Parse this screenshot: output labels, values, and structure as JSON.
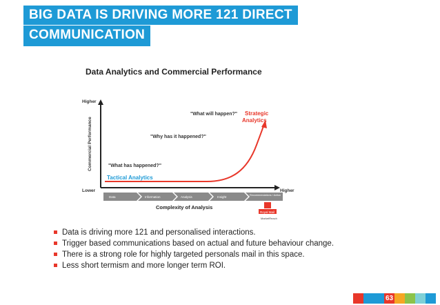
{
  "slide": {
    "title_line1": "BIG DATA IS DRIVING MORE 121 DIRECT",
    "title_line2": "COMMUNICATION",
    "page_number": "63"
  },
  "diagram": {
    "title": "Data Analytics and Commercial Performance",
    "y_axis_label": "Commercial Performance",
    "y_top": "Higher",
    "x_left": "Lower",
    "x_right": "Higher",
    "x_axis_label": "Complexity of Analysis",
    "q1": "\"What has happened?\"",
    "q2": "\"Why has it happened?\"",
    "q3": "\"What will happen?\"",
    "tactical": "Tactical Analytics",
    "strategic_line1": "Strategic",
    "strategic_line2": "Analytics",
    "steps": [
      "Data",
      "Information",
      "Analysis",
      "Insight",
      "Recommendations / Action"
    ],
    "logo_text": "Royal Mail",
    "logo_sub": "MarketReach"
  },
  "bullets": [
    "Data is driving more 121 and personalised interactions.",
    "Trigger based communications based on actual and future behaviour change.",
    "There is a strong role for highly targeted personals mail in this space.",
    "Less short termism and more longer term ROI."
  ],
  "colors": {
    "title_bg": "#1e9ad6",
    "accent_red": "#e8372a",
    "tactical_blue": "#1e9ad6",
    "footer": [
      "#e8372a",
      "#1e9ad6",
      "#1e9ad6",
      "#e8372a",
      "#f5a623",
      "#8bc34a",
      "#7fd0d6",
      "#1e9ad6"
    ]
  }
}
